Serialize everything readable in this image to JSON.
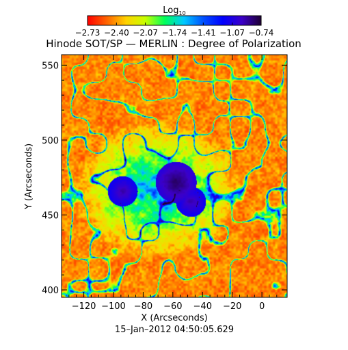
{
  "chart_data": {
    "type": "heatmap",
    "title": "Hinode SOT/SP — MERLIN : Degree of Polarization",
    "subtitle": "15–Jan–2012 04:50:05.629",
    "xlabel": "X (Arcseconds)",
    "ylabel": "Y (Arcseconds)",
    "xlim": [
      -135,
      17
    ],
    "ylim": [
      395,
      557
    ],
    "x_ticks": [
      -120,
      -100,
      -80,
      -60,
      -40,
      -20,
      0
    ],
    "y_ticks": [
      400,
      450,
      500,
      550
    ],
    "colorbar": {
      "label_main": "Log",
      "label_sub": "10",
      "range": [
        -2.73,
        -0.74
      ],
      "tick_labels": [
        "−2.73",
        "−2.40",
        "−2.07",
        "−1.74",
        "−1.41",
        "−1.07",
        "−0.74"
      ]
    },
    "colors": [
      "#ff0000",
      "#ff6400",
      "#ffd200",
      "#c8ff00",
      "#00ff5a",
      "#00c8ff",
      "#0050ff",
      "#0000ff",
      "#3c00c8",
      "#1e0032"
    ],
    "features": [
      {
        "name": "sunspot-umbra-east",
        "x": -58,
        "y": 472,
        "value": -0.8
      },
      {
        "name": "sunspot-umbra-west",
        "x": -94,
        "y": 466,
        "value": -0.9
      },
      {
        "name": "pore",
        "x": -48,
        "y": 459,
        "value": -0.9
      }
    ]
  }
}
